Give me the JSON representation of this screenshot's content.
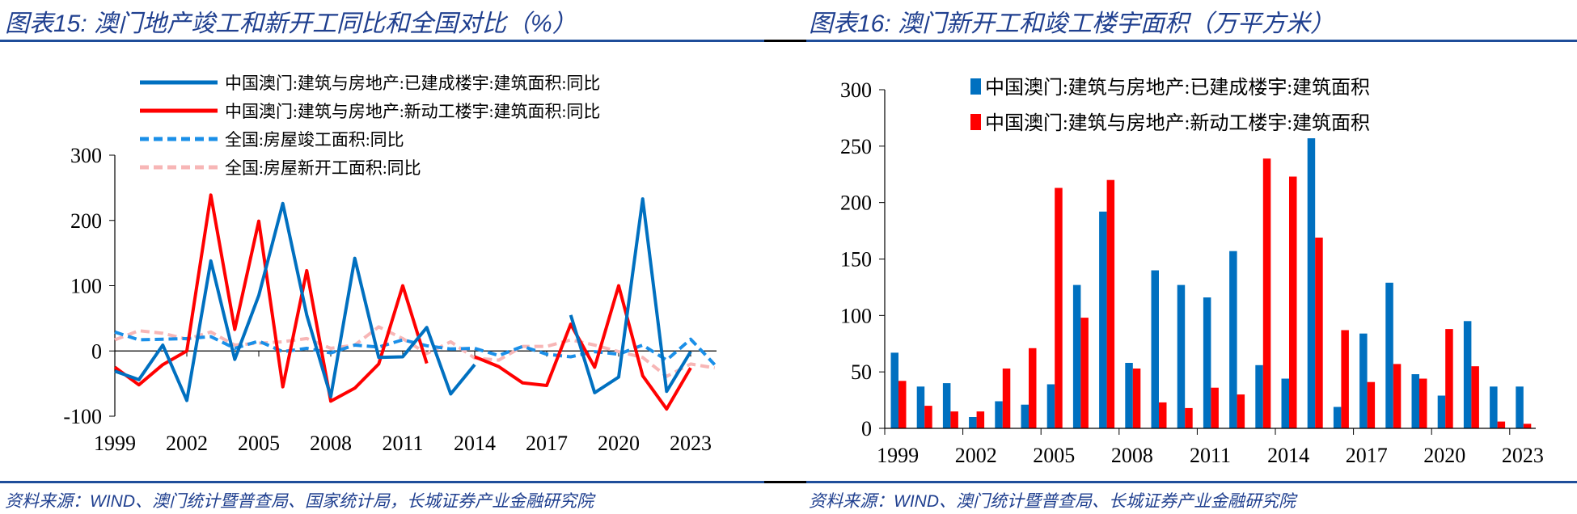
{
  "chart_data": [
    {
      "type": "line",
      "title": "图表15:  澳门地产竣工和新开工同比和全国对比（%）",
      "source": "资料来源：WIND、澳门统计暨普查局、国家统计局，长城证券产业金融研究院",
      "x": [
        1999,
        2000,
        2001,
        2002,
        2003,
        2004,
        2005,
        2006,
        2007,
        2008,
        2009,
        2010,
        2011,
        2012,
        2013,
        2014,
        2015,
        2016,
        2017,
        2018,
        2019,
        2020,
        2021,
        2022,
        2023,
        2024
      ],
      "xticks": [
        "1999",
        "2002",
        "2005",
        "2008",
        "2011",
        "2014",
        "2017",
        "2020",
        "2023"
      ],
      "yticks": [
        "300",
        "200",
        "100",
        "0",
        "-100"
      ],
      "ylim": [
        -100,
        300
      ],
      "grid": false,
      "legend": "top-left",
      "series": [
        {
          "name": "中国澳门:建筑与房地产:已建成楼宇:建筑面积:同比",
          "color": "#0070c0",
          "style": "solid",
          "values": [
            -31,
            -44,
            9,
            -76,
            138,
            -13,
            85,
            226,
            55,
            -70,
            142,
            -10,
            -9,
            36,
            -66,
            -21,
            null,
            null,
            null,
            55,
            -64,
            -40,
            233,
            -62,
            -1,
            null
          ]
        },
        {
          "name": "中国澳门:建筑与房地产:新动工楼宇:建筑面积:同比",
          "color": "#ff0000",
          "style": "solid",
          "values": [
            -25,
            -52,
            -21,
            0,
            239,
            33,
            199,
            -55,
            123,
            -77,
            -57,
            -20,
            100,
            -19,
            null,
            -9,
            -24,
            -49,
            -53,
            41,
            -25,
            100,
            -38,
            -89,
            -26,
            null
          ]
        },
        {
          "name": "全国:房屋竣工面积:同比",
          "color": "#1a8fe8",
          "style": "dashed",
          "values": [
            29,
            17,
            18,
            19,
            22,
            4,
            15,
            -1,
            4,
            -3,
            9,
            6,
            17,
            8,
            3,
            4,
            -7,
            7,
            -5,
            -9,
            -1,
            -5,
            9,
            -14,
            18,
            -21
          ]
        },
        {
          "name": "全国:房屋新开工面积:同比",
          "color": "#f7b6b6",
          "style": "dashed",
          "values": [
            17,
            31,
            27,
            18,
            29,
            9,
            12,
            14,
            19,
            4,
            9,
            37,
            19,
            -4,
            14,
            -11,
            -14,
            7,
            7,
            17,
            9,
            -1,
            -10,
            -39,
            -20,
            -26
          ]
        }
      ]
    },
    {
      "type": "bar",
      "title": "图表16:  澳门新开工和竣工楼宇面积（万平方米）",
      "source": "资料来源：WIND、澳门统计暨普查局、长城证券产业金融研究院",
      "categories": [
        1999,
        2000,
        2001,
        2002,
        2003,
        2004,
        2005,
        2006,
        2007,
        2008,
        2009,
        2010,
        2011,
        2012,
        2013,
        2014,
        2015,
        2016,
        2017,
        2018,
        2019,
        2020,
        2021,
        2022,
        2023
      ],
      "xticks": [
        "1999",
        "2002",
        "2005",
        "2008",
        "2011",
        "2014",
        "2017",
        "2020",
        "2023"
      ],
      "yticks": [
        "300",
        "250",
        "200",
        "150",
        "100",
        "50",
        "0"
      ],
      "ylim": [
        0,
        300
      ],
      "grid": false,
      "legend": "top-center",
      "series": [
        {
          "name": "中国澳门:建筑与房地产:已建成楼宇:建筑面积",
          "color": "#0070c0",
          "values": [
            67,
            37,
            40,
            10,
            24,
            21,
            39,
            127,
            192,
            58,
            140,
            127,
            116,
            157,
            56,
            44,
            257,
            19,
            84,
            129,
            48,
            29,
            95,
            37,
            37
          ]
        },
        {
          "name": "中国澳门:建筑与房地产:新动工楼宇:建筑面积",
          "color": "#ff0000",
          "values": [
            42,
            20,
            15,
            15,
            53,
            71,
            213,
            98,
            220,
            53,
            23,
            18,
            36,
            30,
            239,
            223,
            169,
            87,
            41,
            57,
            44,
            88,
            55,
            6,
            4
          ]
        }
      ]
    }
  ]
}
